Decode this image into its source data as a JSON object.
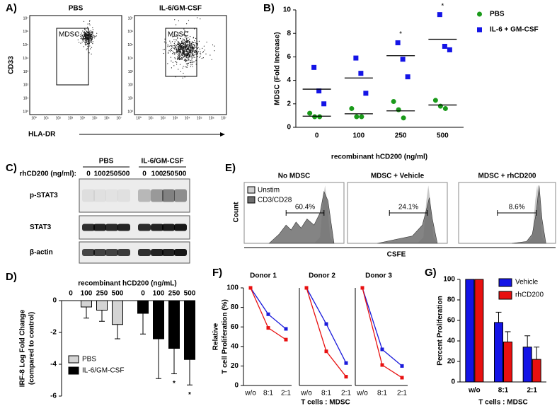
{
  "chart_data": [
    {
      "type": "dot",
      "label": "B)",
      "xlabel": "recombinant hCD200 (ng/ml)",
      "ylabel": "MDSC (Fold Increase)",
      "categories": [
        "0",
        "100",
        "250",
        "500"
      ],
      "ylim": [
        0,
        10
      ],
      "yticks": [
        0,
        2,
        4,
        6,
        8,
        10
      ],
      "legend": "right",
      "series": [
        {
          "name": "PBS",
          "color": "#1a9a1a",
          "marker": "circle",
          "values": [
            [
              1.2,
              0.9,
              0.9
            ],
            [
              1.6,
              0.9,
              0.9
            ],
            [
              2.2,
              1.5,
              0.8
            ],
            [
              2.3,
              1.8,
              1.6
            ]
          ],
          "means": [
            0.95,
            1.15,
            1.4,
            1.9
          ]
        },
        {
          "name": "IL-6 + GM-CSF",
          "color": "#1414e6",
          "marker": "square",
          "values": [
            [
              5.1,
              3.1,
              2.0
            ],
            [
              5.9,
              4.6,
              2.9
            ],
            [
              7.2,
              5.8,
              4.3
            ],
            [
              9.6,
              6.9,
              6.6
            ]
          ],
          "means": [
            3.25,
            4.2,
            6.1,
            7.5
          ]
        }
      ],
      "annotations": [
        {
          "category": "250",
          "text": "*"
        },
        {
          "category": "500",
          "text": "*"
        }
      ]
    },
    {
      "type": "bar",
      "grouping": "side-by-side",
      "label": "D)",
      "title": "recombinant hCD200 (ng/mL)",
      "ylabel": [
        "IRF-8 Log Fold Change",
        "(compared to control)"
      ],
      "categories": [
        "0",
        "100",
        "250",
        "500"
      ],
      "ylim": [
        -6,
        0
      ],
      "yticks": [
        0,
        -2,
        -4,
        -6
      ],
      "legend": "bottom-left",
      "series": [
        {
          "name": "PBS",
          "color": "#d4d4d4",
          "values": [
            0,
            -0.4,
            -0.6,
            -1.5
          ],
          "errors": [
            0,
            0.7,
            0.7,
            0.9
          ]
        },
        {
          "name": "IL-6/GM-CSF",
          "color": "#000000",
          "values": [
            -0.8,
            -2.4,
            -3.0,
            -3.7
          ],
          "errors": [
            1.3,
            2.5,
            1.6,
            1.6
          ]
        }
      ],
      "annotations": [
        {
          "series": 1,
          "category": "250",
          "text": "*"
        },
        {
          "series": 1,
          "category": "500",
          "text": "*"
        }
      ]
    },
    {
      "type": "line",
      "label": "F)",
      "title": "Donor 1",
      "ylabel": [
        "Relative",
        "T cell Proliferation (%)"
      ],
      "categories": [
        "w/o",
        "8:1",
        "2:1"
      ],
      "ylim": [
        0,
        100
      ],
      "yticks": [
        0,
        20,
        40,
        60,
        80,
        100
      ],
      "series": [
        {
          "color": "#1a1adb",
          "values": [
            100,
            73,
            58
          ]
        },
        {
          "color": "#e81010",
          "values": [
            100,
            59,
            47
          ]
        }
      ]
    },
    {
      "type": "line",
      "title": "Donor 2",
      "xlabel": "T cells : MDSC",
      "categories": [
        "w/o",
        "8:1",
        "2:1"
      ],
      "ylim": [
        0,
        100
      ],
      "series": [
        {
          "color": "#1a1adb",
          "values": [
            100,
            63,
            23
          ]
        },
        {
          "color": "#e81010",
          "values": [
            100,
            35,
            9
          ]
        }
      ]
    },
    {
      "type": "line",
      "title": "Donor 3",
      "categories": [
        "w/o",
        "8:1",
        "2:1"
      ],
      "ylim": [
        0,
        100
      ],
      "series": [
        {
          "color": "#1a1adb",
          "values": [
            100,
            37,
            20
          ]
        },
        {
          "color": "#e81010",
          "values": [
            100,
            21,
            8
          ]
        }
      ]
    },
    {
      "type": "bar",
      "grouping": "interleaved",
      "label": "G)",
      "ylabel": "Percent Proliferation",
      "xlabel": "T cells : MDSC",
      "categories": [
        "w/o",
        "8:1",
        "2:1"
      ],
      "ylim": [
        0,
        100
      ],
      "yticks": [
        0,
        20,
        40,
        60,
        80,
        100
      ],
      "legend": "top-right",
      "series": [
        {
          "name": "Vehicle",
          "color": "#1414e6",
          "values": [
            100,
            58,
            34
          ],
          "errors": [
            0,
            10,
            11
          ]
        },
        {
          "name": "rhCD200",
          "color": "#e81010",
          "values": [
            100,
            39,
            22
          ],
          "errors": [
            0,
            10,
            12
          ]
        }
      ]
    }
  ],
  "flow": {
    "label": "A)",
    "ylabel": "CD33",
    "xlabel": "HLA-DR",
    "ticks": [
      "10⁰",
      "10¹",
      "10²",
      "10³",
      "10⁴",
      "10⁵",
      "10⁶",
      "10⁷"
    ],
    "plots": [
      {
        "title": "PBS",
        "gate": "MDSC"
      },
      {
        "title": "IL-6/GM-CSF",
        "gate": "MDSC"
      }
    ]
  },
  "blot": {
    "label": "C)",
    "lane_title": "rhCD200 (ng/ml):",
    "groups": [
      {
        "name": "PBS",
        "lanes": [
          "0",
          "100",
          "250",
          "500"
        ]
      },
      {
        "name": "IL-6/GM-CSF",
        "lanes": [
          "0",
          "100",
          "250",
          "500"
        ]
      }
    ],
    "rows": [
      "p-STAT3",
      "STAT3",
      "β-actin"
    ]
  },
  "histograms": {
    "label": "E)",
    "ylabel": "Count",
    "xlabel": "CSFE",
    "legend": [
      "Unstim",
      "CD3/CD28"
    ],
    "panels": [
      {
        "title": "No MDSC",
        "gate": "60.4%"
      },
      {
        "title": "MDSC + Vehicle",
        "gate": "24.1%"
      },
      {
        "title": "MDSC + rhCD200",
        "gate": "8.6%"
      }
    ]
  }
}
